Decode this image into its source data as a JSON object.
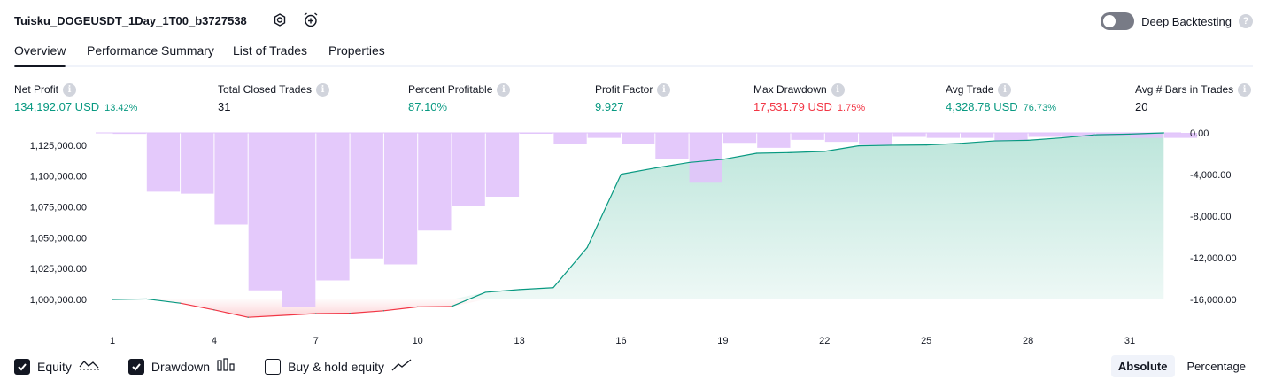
{
  "header": {
    "strategy_name": "Tuisku_DOGEUSDT_1Day_1T00_b3727538",
    "icons": [
      "settings-gear-icon",
      "alarm-add-icon"
    ],
    "deep_backtesting_label": "Deep Backtesting",
    "deep_backtesting_enabled": false
  },
  "tabs": [
    {
      "label": "Overview",
      "active": true
    },
    {
      "label": "Performance Summary",
      "active": false
    },
    {
      "label": "List of Trades",
      "active": false
    },
    {
      "label": "Properties",
      "active": false
    }
  ],
  "metrics": [
    {
      "title": "Net Profit",
      "value": "134,192.07 USD",
      "sub": "13.42%",
      "color": "green"
    },
    {
      "title": "Total Closed Trades",
      "value": "31",
      "sub": "",
      "color": "dark"
    },
    {
      "title": "Percent Profitable",
      "value": "87.10%",
      "sub": "",
      "color": "green"
    },
    {
      "title": "Profit Factor",
      "value": "9.927",
      "sub": "",
      "color": "green"
    },
    {
      "title": "Max Drawdown",
      "value": "17,531.79 USD",
      "sub": "1.75%",
      "color": "red"
    },
    {
      "title": "Avg Trade",
      "value": "4,328.78 USD",
      "sub": "76.73%",
      "color": "green"
    },
    {
      "title": "Avg # Bars in Trades",
      "value": "20",
      "sub": "",
      "color": "dark"
    }
  ],
  "chart_data": {
    "type": "area",
    "x": [
      1,
      2,
      3,
      4,
      5,
      6,
      7,
      8,
      9,
      10,
      11,
      12,
      13,
      14,
      15,
      16,
      17,
      18,
      19,
      20,
      21,
      22,
      23,
      24,
      25,
      26,
      27,
      28,
      29,
      30,
      31,
      32
    ],
    "x_ticks": [
      "1",
      "4",
      "7",
      "10",
      "13",
      "16",
      "19",
      "22",
      "25",
      "28",
      "31"
    ],
    "left_axis": {
      "ticks": [
        "1,125,000.00",
        "1,100,000.00",
        "1,075,000.00",
        "1,050,000.00",
        "1,025,000.00",
        "1,000,000.00"
      ],
      "range": [
        990000,
        1135000
      ]
    },
    "right_axis": {
      "ticks": [
        "0.00",
        "-4,000.00",
        "-8,000.00",
        "-12,000.00",
        "-16,000.00"
      ],
      "range": [
        -17600,
        0
      ]
    },
    "series": [
      {
        "name": "Equity",
        "axis": "left",
        "values": [
          1000000,
          1000400,
          997000,
          991500,
          985500,
          987000,
          988500,
          988800,
          990800,
          994000,
          994300,
          1005800,
          1008000,
          1009500,
          1042000,
          1101500,
          1106500,
          1111000,
          1113500,
          1118500,
          1119000,
          1120000,
          1124500,
          1125000,
          1125200,
          1126500,
          1128500,
          1129000,
          1131000,
          1133500,
          1134000,
          1135000
        ]
      },
      {
        "name": "Drawdown",
        "axis": "right",
        "values": [
          -100,
          -5900,
          -6100,
          -9200,
          -15800,
          -17500,
          -14800,
          -12600,
          -13200,
          -9800,
          -7300,
          -6400,
          -80,
          -1100,
          -500,
          -1100,
          -2600,
          -5000,
          -1000,
          -1500,
          -700,
          -900,
          -1200,
          -400,
          -500,
          -500,
          -800,
          -400,
          -400,
          -300,
          -500,
          -500
        ]
      }
    ],
    "legend": [
      {
        "label": "Equity",
        "checked": true,
        "icon": "equity-line-icon"
      },
      {
        "label": "Drawdown",
        "checked": true,
        "icon": "drawdown-bars-icon"
      },
      {
        "label": "Buy & hold equity",
        "checked": false,
        "icon": "buy-hold-line-icon"
      }
    ],
    "modes": [
      {
        "label": "Absolute",
        "active": true
      },
      {
        "label": "Percentage",
        "active": false
      }
    ],
    "colors": {
      "equity_line": "#089981",
      "equity_below": "#f23645",
      "drawdown_bar": "#e1c3fb",
      "area_top": "#b9e4d9"
    }
  }
}
